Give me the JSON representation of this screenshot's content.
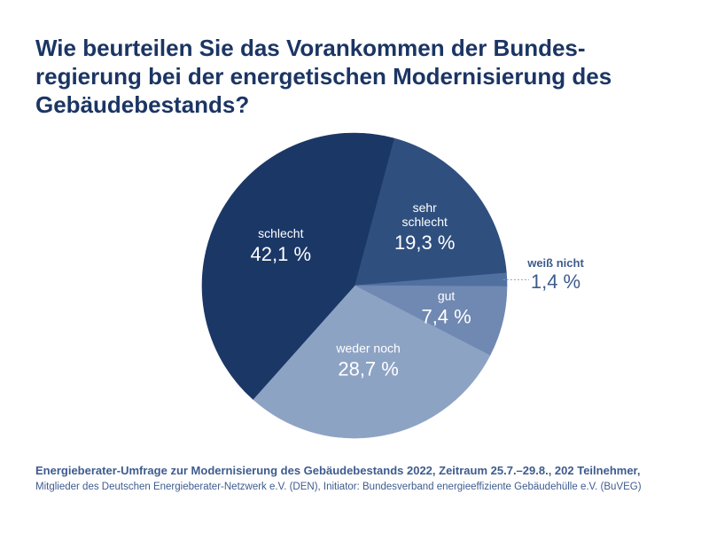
{
  "chart_data": {
    "type": "pie",
    "title_lines": [
      "Wie beurteilen Sie das Vorankommen der Bundes-",
      "regierung bei der energetischen Modernisierung des",
      "Gebäudebestands?"
    ],
    "slices": [
      {
        "label_lines": [
          "sehr",
          "schlecht"
        ],
        "value": 19.3,
        "value_label": "19,3 %",
        "color": "#2f4f7f"
      },
      {
        "label_lines": [
          "weiß nicht"
        ],
        "value": 1.4,
        "value_label": "1,4 %",
        "color": "#5071a0"
      },
      {
        "label_lines": [
          "gut"
        ],
        "value": 7.4,
        "value_label": "7,4 %",
        "color": "#7089b2"
      },
      {
        "label_lines": [
          "weder noch"
        ],
        "value": 28.7,
        "value_label": "28,7 %",
        "color": "#8da3c4"
      },
      {
        "label_lines": [
          "schlecht"
        ],
        "value": 42.1,
        "value_label": "42,1 %",
        "color": "#1b3766"
      }
    ],
    "unit": "%"
  },
  "source": {
    "line1": "Energieberater-Umfrage zur Modernisierung des Gebäudebestands 2022, Zeitraum 25.7.–29.8., 202 Teilnehmer,",
    "line2": "Mitglieder des Deutschen Energieberater-Netzwerk e.V. (DEN), Initiator: Bundesverband energieeffiziente Gebäudehülle e.V. (BuVEG)"
  }
}
